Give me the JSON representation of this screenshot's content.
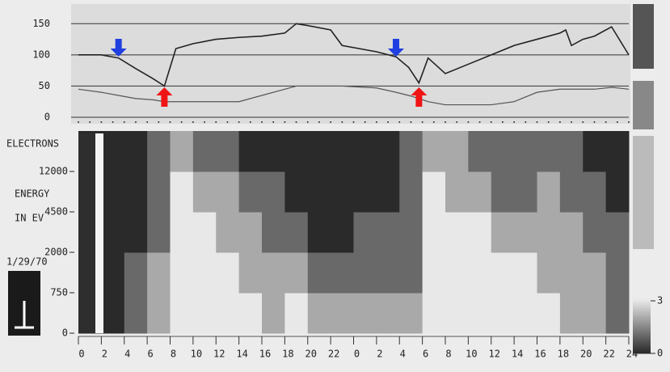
{
  "chart_data": [
    {
      "type": "line",
      "xlim": [
        0,
        48
      ],
      "x": [
        0,
        2,
        3.5,
        5,
        6.5,
        7.5,
        8.5,
        10,
        12,
        14,
        16,
        18,
        19,
        20,
        22,
        23,
        26,
        27.7,
        28.8,
        29.7,
        30.5,
        32,
        34,
        36,
        38,
        40,
        42,
        42.5,
        43,
        44,
        45,
        46.5,
        48
      ],
      "series": [
        {
          "color": "#222222",
          "values": [
            100,
            100,
            95,
            78,
            62,
            50,
            110,
            118,
            125,
            128,
            130,
            135,
            150,
            147,
            140,
            115,
            105,
            97,
            80,
            55,
            95,
            70,
            85,
            100,
            115,
            125,
            135,
            140,
            115,
            125,
            130,
            145,
            100
          ]
        },
        {
          "color": "#555555",
          "values": [
            45,
            40,
            35,
            30,
            28,
            25,
            25,
            25,
            25,
            25,
            35,
            45,
            50,
            50,
            50,
            50,
            47,
            40,
            35,
            30,
            25,
            20,
            20,
            20,
            25,
            40,
            45,
            45,
            45,
            45,
            45,
            48,
            45
          ]
        }
      ],
      "ylim": [
        0,
        175
      ],
      "yticks": [
        0,
        50,
        100,
        150
      ],
      "grid": true,
      "arrows": [
        {
          "x": 3.5,
          "direction": "down",
          "color": "#1f3fe0"
        },
        {
          "x": 7.5,
          "direction": "up",
          "color": "#f01515"
        },
        {
          "x": 27.7,
          "direction": "down",
          "color": "#1f3fe0"
        },
        {
          "x": 29.7,
          "direction": "up",
          "color": "#f01515"
        }
      ]
    },
    {
      "type": "heatmap",
      "title": "ELECTRONS",
      "ylabel": [
        "ENERGY",
        "IN EV"
      ],
      "date": "1/29/70",
      "xlim": [
        0,
        48
      ],
      "xticks": [
        0,
        2,
        4,
        6,
        8,
        10,
        12,
        14,
        16,
        18,
        20,
        22,
        {
          "value": 24,
          "label": "0"
        },
        {
          "value": 26,
          "label": "2"
        },
        {
          "value": 28,
          "label": "4"
        },
        {
          "value": 30,
          "label": "6"
        },
        {
          "value": 32,
          "label": "8"
        },
        {
          "value": 34,
          "label": "10"
        },
        {
          "value": 36,
          "label": "12"
        },
        {
          "value": 38,
          "label": "14"
        },
        {
          "value": 40,
          "label": "16"
        },
        {
          "value": 42,
          "label": "18"
        },
        {
          "value": 44,
          "label": "20"
        },
        {
          "value": 46,
          "label": "22"
        },
        {
          "value": 48,
          "label": "24"
        }
      ],
      "rows": [
        "0",
        "750",
        "2000",
        "4500",
        "12000"
      ],
      "z": [
        [
          0,
          0,
          1,
          2,
          3,
          3,
          3,
          3,
          2,
          3,
          2,
          2,
          2,
          2,
          2,
          3,
          3,
          3,
          3,
          3,
          3,
          2,
          2,
          1
        ],
        [
          0,
          0,
          1,
          2,
          3,
          3,
          3,
          2,
          2,
          2,
          1,
          1,
          1,
          1,
          1,
          3,
          3,
          3,
          3,
          3,
          2,
          2,
          2,
          1
        ],
        [
          0,
          0,
          0,
          1,
          3,
          3,
          2,
          2,
          1,
          1,
          0,
          0,
          1,
          1,
          1,
          3,
          3,
          3,
          2,
          2,
          2,
          2,
          1,
          1
        ],
        [
          0,
          0,
          0,
          1,
          3,
          2,
          2,
          1,
          1,
          0,
          0,
          0,
          0,
          0,
          1,
          3,
          2,
          2,
          1,
          1,
          2,
          1,
          1,
          0
        ],
        [
          0,
          0,
          0,
          1,
          2,
          1,
          1,
          0,
          0,
          0,
          0,
          0,
          0,
          0,
          1,
          2,
          2,
          1,
          1,
          1,
          1,
          1,
          0,
          0
        ]
      ],
      "clim": [
        0,
        3
      ],
      "cticks": [
        0,
        3
      ]
    }
  ]
}
